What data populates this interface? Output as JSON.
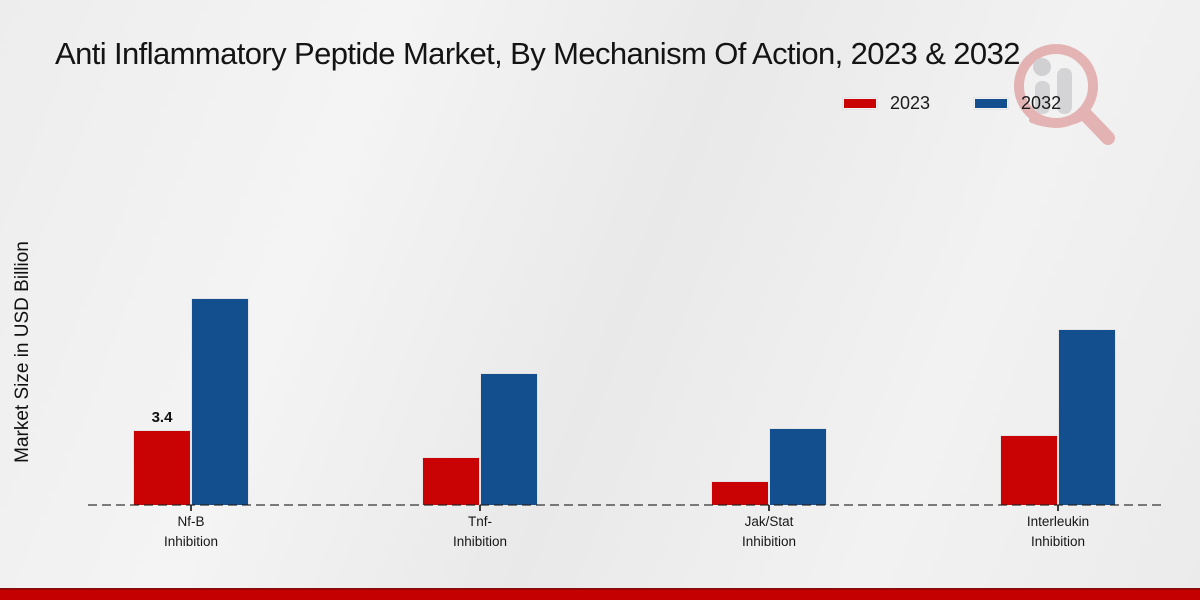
{
  "title": "Anti Inflammatory Peptide Market, By Mechanism Of Action, 2023 & 2032",
  "y_axis_label": "Market Size in USD Billion",
  "legend": {
    "position": "top-right",
    "items": [
      {
        "label": "2023",
        "color": "#c90303"
      },
      {
        "label": "2032",
        "color": "#134f8e"
      }
    ]
  },
  "footer_band_color": "#c40000",
  "chart_data": {
    "type": "bar",
    "title": "Anti Inflammatory Peptide Market, By Mechanism Of Action, 2023 & 2032",
    "xlabel": "",
    "ylabel": "Market Size in USD Billion",
    "categories": [
      "Nf-B Inhibition",
      "Tnf- Inhibition",
      "Jak/Stat Inhibition",
      "Interleukin Inhibition"
    ],
    "category_lines": [
      [
        "Nf-B",
        "Inhibition"
      ],
      [
        "Tnf-",
        "Inhibition"
      ],
      [
        "Jak/Stat",
        "Inhibition"
      ],
      [
        "Interleukin",
        "Inhibition"
      ]
    ],
    "series": [
      {
        "name": "2023",
        "color": "#c90303",
        "values": [
          3.4,
          2.2,
          1.1,
          3.2
        ]
      },
      {
        "name": "2032",
        "color": "#134f8e",
        "values": [
          9.4,
          6.0,
          3.5,
          8.0
        ]
      }
    ],
    "bar_value_labels": [
      {
        "series": "2023",
        "category": "Nf-B Inhibition",
        "text": "3.4"
      }
    ],
    "ylim": [
      0,
      10
    ],
    "grid": false,
    "axis_ticks_visible": false,
    "legend_position": "top-right",
    "baseline_style": "dashed"
  }
}
